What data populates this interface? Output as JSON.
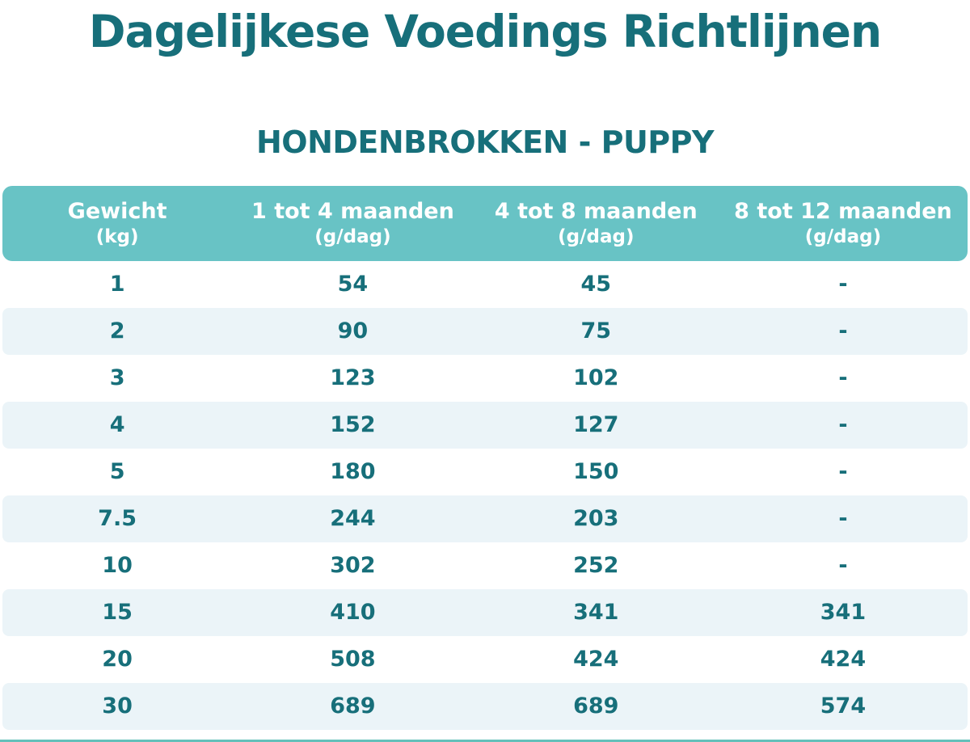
{
  "header": {
    "title": "Dagelijkese Voedings Richtlijnen",
    "subtitle": "HONDENBROKKEN - PUPPY"
  },
  "table": {
    "columns": [
      {
        "label": "Gewicht",
        "unit": "(kg)"
      },
      {
        "label": "1 tot 4 maanden",
        "unit": "(g/dag)"
      },
      {
        "label": "4 tot 8 maanden",
        "unit": "(g/dag)"
      },
      {
        "label": "8 tot 12 maanden",
        "unit": "(g/dag)"
      }
    ],
    "rows": [
      [
        "1",
        "54",
        "45",
        "-"
      ],
      [
        "2",
        "90",
        "75",
        "-"
      ],
      [
        "3",
        "123",
        "102",
        "-"
      ],
      [
        "4",
        "152",
        "127",
        "-"
      ],
      [
        "5",
        "180",
        "150",
        "-"
      ],
      [
        "7.5",
        "244",
        "203",
        "-"
      ],
      [
        "10",
        "302",
        "252",
        "-"
      ],
      [
        "15",
        "410",
        "341",
        "341"
      ],
      [
        "20",
        "508",
        "424",
        "424"
      ],
      [
        "30",
        "689",
        "689",
        "574"
      ]
    ]
  },
  "chart_data": {
    "type": "table",
    "title": "Dagelijkese Voedings Richtlijnen",
    "subtitle": "HONDENBROKKEN - PUPPY",
    "categories_label": "Gewicht (kg)",
    "categories": [
      1,
      2,
      3,
      4,
      5,
      7.5,
      10,
      15,
      20,
      30
    ],
    "series": [
      {
        "name": "1 tot 4 maanden (g/dag)",
        "values": [
          54,
          90,
          123,
          152,
          180,
          244,
          302,
          410,
          508,
          689
        ]
      },
      {
        "name": "4 tot 8 maanden (g/dag)",
        "values": [
          45,
          75,
          102,
          127,
          150,
          203,
          252,
          341,
          424,
          689
        ]
      },
      {
        "name": "8 tot 12 maanden (g/dag)",
        "values": [
          null,
          null,
          null,
          null,
          null,
          null,
          null,
          341,
          424,
          574
        ]
      }
    ],
    "missing_value_marker": "-"
  },
  "colors": {
    "header_bg": "#68C3C5",
    "alt_row_bg": "#EBF4F8",
    "teal_text": "#176F7A",
    "header_text": "#FFFFFF",
    "bottom_strip": "#64C0BA"
  }
}
